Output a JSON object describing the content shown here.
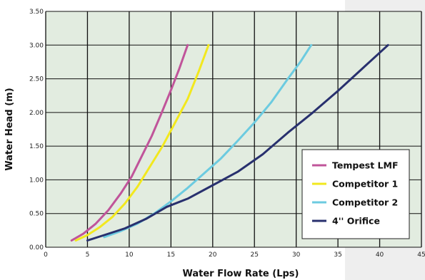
{
  "chart_data": {
    "type": "line",
    "xlabel": "Water Flow Rate (Lps)",
    "ylabel": "Water Head (m)",
    "xlim": [
      0,
      45
    ],
    "ylim": [
      0,
      3.5
    ],
    "xticks": [
      0,
      5,
      10,
      15,
      20,
      25,
      30,
      35,
      40,
      45
    ],
    "xtick_labels": [
      "0",
      "5",
      "10",
      "15",
      "20",
      "25",
      "30",
      "35",
      "40",
      "45"
    ],
    "yticks": [
      0,
      0.5,
      1.0,
      1.5,
      2.0,
      2.5,
      3.0,
      3.5
    ],
    "ytick_labels": [
      "0.00",
      "0.50",
      "1.00",
      "1.50",
      "2.00",
      "2.50",
      "3.00",
      "3.50"
    ],
    "grid": true,
    "plot_background": "#e2ece0",
    "legend_position": "bottom-right",
    "series": [
      {
        "name": "Tempest LMF",
        "color": "#c0549a",
        "x": [
          3.1,
          4.5,
          6.0,
          7.5,
          9.0,
          10.3,
          11.5,
          12.7,
          13.9,
          15.0,
          16.0,
          17.0
        ],
        "y": [
          0.1,
          0.2,
          0.35,
          0.55,
          0.8,
          1.05,
          1.35,
          1.65,
          2.0,
          2.33,
          2.65,
          3.0
        ]
      },
      {
        "name": "Competitor 1",
        "color": "#f2e81e",
        "x": [
          3.6,
          5.0,
          6.5,
          8.0,
          9.5,
          11.0,
          12.5,
          14.0,
          15.5,
          17.0,
          18.3,
          19.5
        ],
        "y": [
          0.1,
          0.18,
          0.3,
          0.45,
          0.65,
          0.9,
          1.2,
          1.5,
          1.85,
          2.2,
          2.6,
          3.0
        ]
      },
      {
        "name": "Competitor 2",
        "color": "#6ccbe0",
        "x": [
          7.0,
          9.0,
          11.0,
          13.0,
          15.0,
          17.0,
          19.0,
          21.0,
          23.0,
          25.0,
          27.0,
          29.0,
          30.5,
          31.8
        ],
        "y": [
          0.15,
          0.24,
          0.35,
          0.5,
          0.68,
          0.88,
          1.1,
          1.32,
          1.58,
          1.85,
          2.15,
          2.5,
          2.75,
          3.0
        ]
      },
      {
        "name": "4'' Orifice",
        "color": "#28306e",
        "x": [
          5.0,
          7.0,
          9.5,
          12.0,
          14.5,
          17.0,
          20.0,
          23.0,
          26.0,
          29.0,
          32.0,
          35.0,
          38.0,
          41.0
        ],
        "y": [
          0.1,
          0.18,
          0.28,
          0.42,
          0.6,
          0.72,
          0.92,
          1.12,
          1.38,
          1.7,
          2.0,
          2.32,
          2.66,
          3.0
        ]
      }
    ]
  }
}
